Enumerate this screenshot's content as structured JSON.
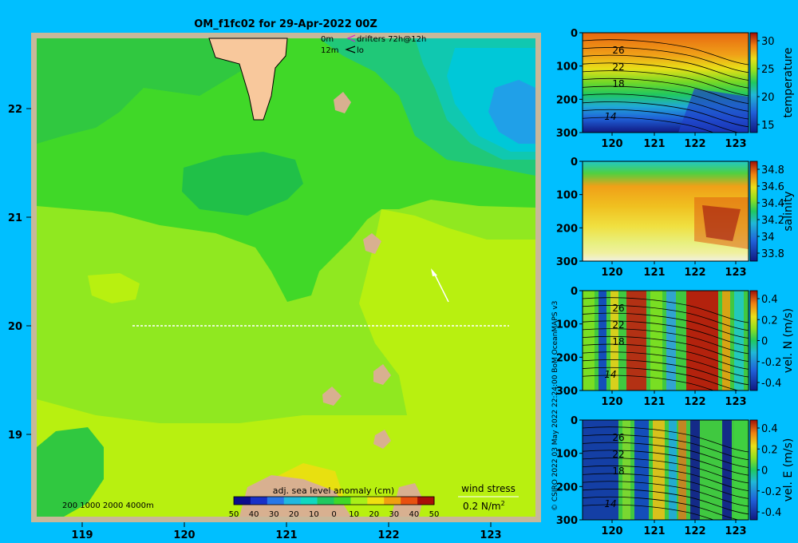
{
  "title": "OM_f1fc02 for 29-Apr-2022 00Z",
  "legend": {
    "line1_depth": "0m",
    "line1_label": "drifters 72h@12h",
    "line2_depth": "12m",
    "line2_label": "lo"
  },
  "map": {
    "x_ticks": [
      "119",
      "120",
      "121",
      "122",
      "123"
    ],
    "y_ticks": [
      "22",
      "21",
      "20",
      "19"
    ],
    "bathymetry_label": "200  1000  2000  4000m",
    "colorbar_title": "adj. sea level anomaly (cm)",
    "colorbar_ticks": [
      "50",
      "40",
      "30",
      "20",
      "10",
      "0",
      "10",
      "20",
      "30",
      "40",
      "50"
    ],
    "colorbar_colors": [
      "#0c0c8c",
      "#1830c8",
      "#2878e8",
      "#20b8e0",
      "#10d8c0",
      "#20c860",
      "#40d828",
      "#a8f018",
      "#f0e010",
      "#f0a010",
      "#e85010",
      "#a81008"
    ],
    "wind_stress_title": "wind stress",
    "wind_stress_scale": "0.2 N/m",
    "wind_stress_sup": "2",
    "colors": {
      "sea": "#00bfff",
      "land": "#f8c89c",
      "frame": "#c8b89a",
      "dark_green": "#10c040",
      "green": "#40d828",
      "light_green": "#90e820",
      "yellow_green": "#b8f010",
      "cyan": "#00d0c8"
    }
  },
  "credit": "© CSIRO 2022   03 May 2022 22:24:00 BoM OceanMAPS v3",
  "panels": [
    {
      "id": "temperature",
      "x_ticks": [
        "120",
        "121",
        "122",
        "123"
      ],
      "y_ticks": [
        "0",
        "100",
        "200",
        "300"
      ],
      "colorbar_ticks": [
        "30",
        "25",
        "20",
        "15"
      ],
      "colorbar_label": "temperature",
      "contour_labels": [
        "26",
        "22",
        "18",
        "14"
      ]
    },
    {
      "id": "salinity",
      "x_ticks": [
        "120",
        "121",
        "122",
        "123"
      ],
      "y_ticks": [
        "0",
        "100",
        "200",
        "300"
      ],
      "colorbar_ticks": [
        "34.8",
        "34.6",
        "34.4",
        "34.2",
        "34",
        "33.8"
      ],
      "colorbar_label": "salinity",
      "contour_labels": []
    },
    {
      "id": "vel-n",
      "x_ticks": [
        "120",
        "121",
        "122",
        "123"
      ],
      "y_ticks": [
        "0",
        "100",
        "200",
        "300"
      ],
      "colorbar_ticks": [
        "0.4",
        "0.2",
        "0",
        "-0.2",
        "-0.4"
      ],
      "colorbar_label": "vel. N (m/s)",
      "contour_labels": [
        "26",
        "22",
        "18",
        "14"
      ]
    },
    {
      "id": "vel-e",
      "x_ticks": [
        "120",
        "121",
        "122",
        "123"
      ],
      "y_ticks": [
        "0",
        "100",
        "200",
        "300"
      ],
      "colorbar_ticks": [
        "0.4",
        "0.2",
        "0",
        "-0.2",
        "-0.4"
      ],
      "colorbar_label": "vel. E (m/s)",
      "contour_labels": [
        "26",
        "22",
        "18",
        "14"
      ]
    }
  ]
}
